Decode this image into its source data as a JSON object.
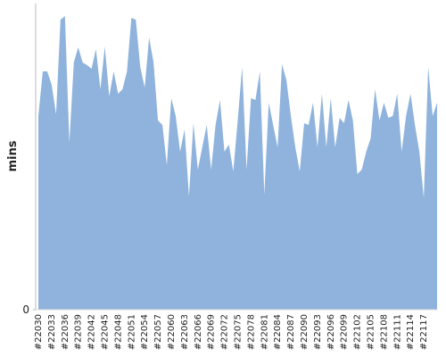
{
  "chart_data": {
    "type": "area",
    "y_label": "mins",
    "color": "#8fb3dc",
    "categories": [
      "#22030",
      null,
      null,
      "#22033",
      null,
      null,
      "#22036",
      null,
      null,
      "#22039",
      null,
      null,
      "#22042",
      null,
      null,
      "#22045",
      null,
      null,
      "#22048",
      null,
      null,
      "#22051",
      null,
      null,
      "#22054",
      null,
      null,
      "#22057",
      null,
      null,
      "#22060",
      null,
      null,
      "#22063",
      null,
      null,
      "#22066",
      null,
      null,
      "#22069",
      null,
      null,
      "#22072",
      null,
      null,
      "#22075",
      null,
      null,
      "#22078",
      null,
      null,
      "#22081",
      null,
      null,
      "#22084",
      null,
      null,
      "#22087",
      null,
      null,
      "#22090",
      null,
      null,
      "#22093",
      null,
      null,
      "#22096",
      null,
      null,
      "#22099",
      null,
      null,
      "#22102",
      null,
      null,
      "#22105",
      null,
      null,
      "#22108",
      null,
      null,
      "#22111",
      null,
      null,
      "#22114",
      null,
      null,
      "#22117",
      null,
      null,
      null
    ],
    "values": [
      217,
      267,
      267,
      252,
      219,
      325,
      329,
      187,
      277,
      294,
      277,
      274,
      270,
      292,
      247,
      295,
      239,
      267,
      242,
      247,
      267,
      327,
      325,
      272,
      249,
      305,
      277,
      212,
      207,
      162,
      237,
      217,
      177,
      202,
      127,
      209,
      157,
      182,
      207,
      157,
      207,
      235,
      177,
      185,
      155,
      212,
      272,
      157,
      237,
      235,
      267,
      129,
      232,
      207,
      182,
      275,
      257,
      217,
      182,
      155,
      209,
      207,
      232,
      182,
      242,
      182,
      237,
      182,
      215,
      209,
      235,
      212,
      152,
      157,
      177,
      192,
      247,
      212,
      232,
      215,
      217,
      242,
      177,
      217,
      242,
      207,
      177,
      125,
      272,
      217,
      232
    ],
    "ylim": [
      0,
      340
    ],
    "yticks": [
      0
    ]
  }
}
